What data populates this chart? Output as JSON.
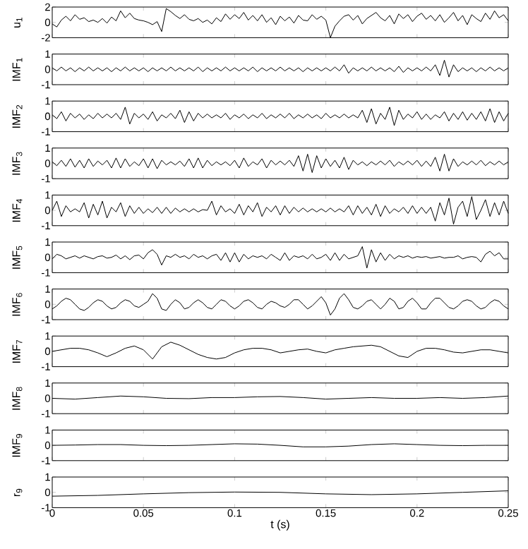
{
  "chart_data": [
    {
      "type": "line",
      "ylabel": "u$_{1}$",
      "xlim": [
        0,
        0.25
      ],
      "ylim": [
        -2,
        2
      ],
      "xticks": [
        0,
        0.05,
        0.1,
        0.15,
        0.2,
        0.25
      ],
      "yticks": [
        -2,
        0,
        2
      ],
      "tick_labels": "y",
      "x": [
        0,
        0.0025,
        0.005,
        0.0075,
        0.01,
        0.0125,
        0.015,
        0.0175,
        0.02,
        0.0225,
        0.025,
        0.0275,
        0.03,
        0.0325,
        0.035,
        0.0375,
        0.04,
        0.0425,
        0.045,
        0.0475,
        0.05,
        0.0525,
        0.055,
        0.0575,
        0.06,
        0.0625,
        0.065,
        0.0675,
        0.07,
        0.0725,
        0.075,
        0.0775,
        0.08,
        0.0825,
        0.085,
        0.0875,
        0.09,
        0.0925,
        0.095,
        0.0975,
        0.1,
        0.1025,
        0.105,
        0.1075,
        0.11,
        0.1125,
        0.115,
        0.1175,
        0.12,
        0.1225,
        0.125,
        0.1275,
        0.13,
        0.1325,
        0.135,
        0.1375,
        0.14,
        0.1425,
        0.145,
        0.1475,
        0.15,
        0.1525,
        0.155,
        0.1575,
        0.16,
        0.1625,
        0.165,
        0.1675,
        0.17,
        0.1725,
        0.175,
        0.1775,
        0.18,
        0.1825,
        0.185,
        0.1875,
        0.19,
        0.1925,
        0.195,
        0.1975,
        0.2,
        0.2025,
        0.205,
        0.2075,
        0.21,
        0.2125,
        0.215,
        0.2175,
        0.22,
        0.2225,
        0.225,
        0.2275,
        0.23,
        0.2325,
        0.235,
        0.2375,
        0.24,
        0.2425,
        0.245,
        0.2475,
        0.25
      ],
      "series": [
        {
          "color": "#000000",
          "values": [
            -0.2,
            -0.6,
            0.3,
            0.8,
            0.2,
            1.0,
            0.4,
            0.6,
            0.1,
            0.3,
            0.0,
            0.5,
            -0.1,
            0.7,
            0.2,
            1.5,
            0.6,
            1.2,
            0.5,
            0.3,
            0.2,
            0.0,
            -0.3,
            0.1,
            -1.2,
            1.8,
            1.4,
            0.9,
            0.5,
            1.0,
            0.4,
            0.2,
            0.5,
            0.0,
            0.3,
            -0.2,
            0.6,
            0.1,
            1.1,
            0.4,
            1.0,
            0.5,
            1.3,
            0.3,
            0.9,
            0.2,
            1.0,
            0.0,
            0.6,
            -0.3,
            0.8,
            0.2,
            0.7,
            -0.1,
            0.9,
            0.3,
            0.2,
            1.0,
            0.4,
            0.8,
            0.3,
            -2.0,
            -0.5,
            0.2,
            0.8,
            1.0,
            0.3,
            0.9,
            -0.2,
            0.5,
            0.9,
            1.3,
            0.6,
            0.2,
            0.9,
            -0.2,
            1.1,
            0.5,
            1.0,
            0.1,
            0.8,
            1.2,
            0.4,
            0.9,
            0.2,
            1.0,
            0.0,
            0.6,
            1.3,
            0.2,
            0.9,
            -0.3,
            1.0,
            0.5,
            0.1,
            1.2,
            0.4,
            1.5,
            0.6,
            1.0,
            0.2
          ]
        }
      ]
    },
    {
      "type": "line",
      "ylabel": "IMF$_{1}$",
      "xlim": [
        0,
        0.25
      ],
      "ylim": [
        -1,
        1
      ],
      "xticks": [
        0,
        0.05,
        0.1,
        0.15,
        0.2,
        0.25
      ],
      "yticks": [
        -1,
        0,
        1
      ],
      "tick_labels": "y",
      "x": [
        0,
        0.0025,
        0.005,
        0.0075,
        0.01,
        0.0125,
        0.015,
        0.0175,
        0.02,
        0.0225,
        0.025,
        0.0275,
        0.03,
        0.0325,
        0.035,
        0.0375,
        0.04,
        0.0425,
        0.045,
        0.0475,
        0.05,
        0.0525,
        0.055,
        0.0575,
        0.06,
        0.0625,
        0.065,
        0.0675,
        0.07,
        0.0725,
        0.075,
        0.0775,
        0.08,
        0.0825,
        0.085,
        0.0875,
        0.09,
        0.0925,
        0.095,
        0.0975,
        0.1,
        0.1025,
        0.105,
        0.1075,
        0.11,
        0.1125,
        0.115,
        0.1175,
        0.12,
        0.1225,
        0.125,
        0.1275,
        0.13,
        0.1325,
        0.135,
        0.1375,
        0.14,
        0.1425,
        0.145,
        0.1475,
        0.15,
        0.1525,
        0.155,
        0.1575,
        0.16,
        0.1625,
        0.165,
        0.1675,
        0.17,
        0.1725,
        0.175,
        0.1775,
        0.18,
        0.1825,
        0.185,
        0.1875,
        0.19,
        0.1925,
        0.195,
        0.1975,
        0.2,
        0.2025,
        0.205,
        0.2075,
        0.21,
        0.2125,
        0.215,
        0.2175,
        0.22,
        0.2225,
        0.225,
        0.2275,
        0.23,
        0.2325,
        0.235,
        0.2375,
        0.24,
        0.2425,
        0.245,
        0.2475,
        0.25
      ],
      "series": [
        {
          "color": "#000000",
          "values": [
            0.1,
            -0.1,
            0.15,
            -0.1,
            0.1,
            -0.15,
            0.1,
            -0.1,
            0.15,
            -0.1,
            0.1,
            -0.1,
            0.1,
            -0.15,
            0.1,
            -0.1,
            0.15,
            -0.1,
            0.1,
            -0.1,
            0.1,
            -0.15,
            0.1,
            -0.1,
            0.1,
            -0.1,
            0.15,
            -0.1,
            0.1,
            -0.1,
            0.1,
            -0.1,
            0.15,
            -0.15,
            0.1,
            -0.1,
            0.1,
            -0.1,
            0.15,
            -0.1,
            0.1,
            -0.1,
            0.1,
            -0.1,
            0.15,
            -0.15,
            0.1,
            -0.1,
            0.1,
            -0.1,
            0.15,
            -0.1,
            0.1,
            -0.1,
            0.1,
            -0.15,
            0.1,
            -0.1,
            0.1,
            -0.1,
            0.1,
            -0.1,
            0.15,
            -0.1,
            0.3,
            -0.25,
            0.1,
            -0.1,
            0.1,
            -0.1,
            0.15,
            -0.1,
            0.1,
            -0.1,
            0.1,
            -0.15,
            0.2,
            -0.2,
            0.1,
            -0.1,
            0.1,
            -0.1,
            0.15,
            -0.1,
            0.3,
            -0.4,
            0.6,
            -0.5,
            0.3,
            -0.15,
            0.1,
            -0.1,
            0.1,
            -0.15,
            0.1,
            -0.1,
            0.15,
            -0.1,
            0.1,
            -0.1,
            0.1
          ]
        }
      ]
    },
    {
      "type": "line",
      "ylabel": "IMF$_{2}$",
      "xlim": [
        0,
        0.25
      ],
      "ylim": [
        -1,
        1
      ],
      "xticks": [
        0,
        0.05,
        0.1,
        0.15,
        0.2,
        0.25
      ],
      "yticks": [
        -1,
        0,
        1
      ],
      "tick_labels": "y",
      "x": [
        0,
        0.0025,
        0.005,
        0.0075,
        0.01,
        0.0125,
        0.015,
        0.0175,
        0.02,
        0.0225,
        0.025,
        0.0275,
        0.03,
        0.0325,
        0.035,
        0.0375,
        0.04,
        0.0425,
        0.045,
        0.0475,
        0.05,
        0.0525,
        0.055,
        0.0575,
        0.06,
        0.0625,
        0.065,
        0.0675,
        0.07,
        0.0725,
        0.075,
        0.0775,
        0.08,
        0.0825,
        0.085,
        0.0875,
        0.09,
        0.0925,
        0.095,
        0.0975,
        0.1,
        0.1025,
        0.105,
        0.1075,
        0.11,
        0.1125,
        0.115,
        0.1175,
        0.12,
        0.1225,
        0.125,
        0.1275,
        0.13,
        0.1325,
        0.135,
        0.1375,
        0.14,
        0.1425,
        0.145,
        0.1475,
        0.15,
        0.1525,
        0.155,
        0.1575,
        0.16,
        0.1625,
        0.165,
        0.1675,
        0.17,
        0.1725,
        0.175,
        0.1775,
        0.18,
        0.1825,
        0.185,
        0.1875,
        0.19,
        0.1925,
        0.195,
        0.1975,
        0.2,
        0.2025,
        0.205,
        0.2075,
        0.21,
        0.2125,
        0.215,
        0.2175,
        0.22,
        0.2225,
        0.225,
        0.2275,
        0.23,
        0.2325,
        0.235,
        0.2375,
        0.24,
        0.2425,
        0.245,
        0.2475,
        0.25
      ],
      "series": [
        {
          "color": "#000000",
          "values": [
            0.1,
            -0.15,
            0.3,
            -0.3,
            0.2,
            -0.1,
            0.15,
            -0.2,
            0.1,
            -0.15,
            0.2,
            -0.1,
            0.15,
            -0.1,
            0.2,
            -0.2,
            0.6,
            -0.5,
            0.2,
            -0.1,
            0.15,
            -0.2,
            0.3,
            -0.3,
            0.1,
            -0.1,
            0.2,
            -0.15,
            0.4,
            -0.4,
            0.3,
            -0.3,
            0.2,
            -0.1,
            0.15,
            -0.1,
            0.1,
            -0.1,
            0.2,
            -0.2,
            0.1,
            -0.1,
            0.15,
            -0.15,
            0.1,
            -0.1,
            0.2,
            -0.15,
            0.1,
            -0.1,
            0.15,
            -0.1,
            0.2,
            -0.15,
            0.1,
            -0.1,
            0.15,
            -0.1,
            0.1,
            -0.15,
            0.2,
            -0.1,
            0.1,
            -0.1,
            0.15,
            -0.1,
            0.1,
            -0.1,
            0.4,
            -0.4,
            0.5,
            -0.5,
            0.2,
            -0.2,
            0.6,
            -0.6,
            0.4,
            -0.2,
            0.15,
            -0.1,
            0.3,
            -0.2,
            0.15,
            -0.2,
            0.1,
            -0.1,
            0.3,
            -0.3,
            0.2,
            -0.2,
            0.3,
            -0.25,
            0.2,
            -0.2,
            0.3,
            -0.3,
            0.5,
            -0.4,
            0.3,
            -0.3,
            0.2
          ]
        }
      ]
    },
    {
      "type": "line",
      "ylabel": "IMF$_{3}$",
      "xlim": [
        0,
        0.25
      ],
      "ylim": [
        -1,
        1
      ],
      "xticks": [
        0,
        0.05,
        0.1,
        0.15,
        0.2,
        0.25
      ],
      "yticks": [
        -1,
        0,
        1
      ],
      "tick_labels": "y",
      "x": [
        0,
        0.0025,
        0.005,
        0.0075,
        0.01,
        0.0125,
        0.015,
        0.0175,
        0.02,
        0.0225,
        0.025,
        0.0275,
        0.03,
        0.0325,
        0.035,
        0.0375,
        0.04,
        0.0425,
        0.045,
        0.0475,
        0.05,
        0.0525,
        0.055,
        0.0575,
        0.06,
        0.0625,
        0.065,
        0.0675,
        0.07,
        0.0725,
        0.075,
        0.0775,
        0.08,
        0.0825,
        0.085,
        0.0875,
        0.09,
        0.0925,
        0.095,
        0.0975,
        0.1,
        0.1025,
        0.105,
        0.1075,
        0.11,
        0.1125,
        0.115,
        0.1175,
        0.12,
        0.1225,
        0.125,
        0.1275,
        0.13,
        0.1325,
        0.135,
        0.1375,
        0.14,
        0.1425,
        0.145,
        0.1475,
        0.15,
        0.1525,
        0.155,
        0.1575,
        0.16,
        0.1625,
        0.165,
        0.1675,
        0.17,
        0.1725,
        0.175,
        0.1775,
        0.18,
        0.1825,
        0.185,
        0.1875,
        0.19,
        0.1925,
        0.195,
        0.1975,
        0.2,
        0.2025,
        0.205,
        0.2075,
        0.21,
        0.2125,
        0.215,
        0.2175,
        0.22,
        0.2225,
        0.225,
        0.2275,
        0.23,
        0.2325,
        0.235,
        0.2375,
        0.24,
        0.2425,
        0.245,
        0.2475,
        0.25
      ],
      "series": [
        {
          "color": "#000000",
          "values": [
            0.1,
            -0.15,
            0.2,
            -0.2,
            0.3,
            -0.25,
            0.2,
            -0.3,
            0.3,
            -0.2,
            0.15,
            -0.1,
            0.2,
            -0.3,
            0.35,
            -0.3,
            0.3,
            -0.2,
            0.1,
            -0.15,
            0.3,
            -0.3,
            0.3,
            -0.35,
            0.2,
            -0.1,
            0.1,
            -0.1,
            0.15,
            -0.2,
            0.3,
            -0.3,
            0.35,
            -0.3,
            0.2,
            -0.15,
            0.1,
            -0.1,
            0.1,
            -0.15,
            0.2,
            -0.3,
            0.35,
            -0.2,
            0.1,
            -0.1,
            0.3,
            -0.3,
            0.2,
            -0.1,
            0.15,
            -0.1,
            0.2,
            -0.2,
            0.5,
            -0.5,
            0.6,
            -0.6,
            0.5,
            -0.3,
            0.3,
            -0.2,
            0.2,
            -0.3,
            0.4,
            -0.4,
            0.2,
            -0.1,
            0.1,
            -0.15,
            0.1,
            -0.1,
            0.15,
            -0.1,
            0.2,
            -0.2,
            0.1,
            -0.1,
            0.15,
            -0.1,
            0.2,
            -0.2,
            0.15,
            -0.2,
            0.4,
            -0.5,
            0.6,
            -0.5,
            0.3,
            -0.2,
            0.1,
            -0.1,
            0.15,
            -0.1,
            0.2,
            -0.15,
            0.1,
            -0.1,
            0.15,
            -0.1,
            0.1
          ]
        }
      ]
    },
    {
      "type": "line",
      "ylabel": "IMF$_{4}$",
      "xlim": [
        0,
        0.25
      ],
      "ylim": [
        -1,
        1
      ],
      "xticks": [
        0,
        0.05,
        0.1,
        0.15,
        0.2,
        0.25
      ],
      "yticks": [
        -1,
        0,
        1
      ],
      "tick_labels": "y",
      "x": [
        0,
        0.0025,
        0.005,
        0.0075,
        0.01,
        0.0125,
        0.015,
        0.0175,
        0.02,
        0.0225,
        0.025,
        0.0275,
        0.03,
        0.0325,
        0.035,
        0.0375,
        0.04,
        0.0425,
        0.045,
        0.0475,
        0.05,
        0.0525,
        0.055,
        0.0575,
        0.06,
        0.0625,
        0.065,
        0.0675,
        0.07,
        0.0725,
        0.075,
        0.0775,
        0.08,
        0.0825,
        0.085,
        0.0875,
        0.09,
        0.0925,
        0.095,
        0.0975,
        0.1,
        0.1025,
        0.105,
        0.1075,
        0.11,
        0.1125,
        0.115,
        0.1175,
        0.12,
        0.1225,
        0.125,
        0.1275,
        0.13,
        0.1325,
        0.135,
        0.1375,
        0.14,
        0.1425,
        0.145,
        0.1475,
        0.15,
        0.1525,
        0.155,
        0.1575,
        0.16,
        0.1625,
        0.165,
        0.1675,
        0.17,
        0.1725,
        0.175,
        0.1775,
        0.18,
        0.1825,
        0.185,
        0.1875,
        0.19,
        0.1925,
        0.195,
        0.1975,
        0.2,
        0.2025,
        0.205,
        0.2075,
        0.21,
        0.2125,
        0.215,
        0.2175,
        0.22,
        0.2225,
        0.225,
        0.2275,
        0.23,
        0.2325,
        0.235,
        0.2375,
        0.24,
        0.2425,
        0.245,
        0.2475,
        0.25
      ],
      "series": [
        {
          "color": "#000000",
          "values": [
            0.0,
            0.6,
            -0.4,
            0.3,
            -0.1,
            0.1,
            -0.1,
            0.5,
            -0.5,
            0.4,
            -0.3,
            0.6,
            -0.5,
            0.2,
            -0.1,
            0.5,
            -0.4,
            0.3,
            -0.2,
            0.2,
            -0.2,
            0.1,
            -0.15,
            0.2,
            -0.2,
            0.2,
            -0.2,
            0.15,
            -0.1,
            0.1,
            -0.1,
            0.1,
            -0.1,
            0.05,
            0.0,
            0.6,
            -0.3,
            0.3,
            -0.1,
            0.1,
            -0.2,
            0.4,
            -0.3,
            0.3,
            -0.1,
            0.5,
            -0.4,
            0.2,
            -0.1,
            0.3,
            -0.3,
            0.3,
            -0.2,
            0.2,
            -0.1,
            0.15,
            -0.1,
            0.1,
            -0.1,
            0.1,
            -0.1,
            0.15,
            -0.1,
            0.1,
            -0.1,
            0.3,
            -0.3,
            0.3,
            -0.2,
            0.2,
            -0.3,
            0.4,
            -0.4,
            0.3,
            -0.2,
            0.1,
            -0.1,
            0.2,
            -0.2,
            0.3,
            -0.2,
            0.2,
            -0.2,
            0.2,
            -0.7,
            0.5,
            -0.3,
            0.8,
            -0.9,
            0.2,
            0.6,
            -0.4,
            0.9,
            -0.6,
            0.0,
            0.7,
            -0.4,
            0.5,
            -0.3,
            0.6,
            -0.2
          ]
        }
      ]
    },
    {
      "type": "line",
      "ylabel": "IMF$_{5}$",
      "xlim": [
        0,
        0.25
      ],
      "ylim": [
        -1,
        1
      ],
      "xticks": [
        0,
        0.05,
        0.1,
        0.15,
        0.2,
        0.25
      ],
      "yticks": [
        -1,
        0,
        1
      ],
      "tick_labels": "y",
      "x": [
        0,
        0.0025,
        0.005,
        0.0075,
        0.01,
        0.0125,
        0.015,
        0.0175,
        0.02,
        0.0225,
        0.025,
        0.0275,
        0.03,
        0.0325,
        0.035,
        0.0375,
        0.04,
        0.0425,
        0.045,
        0.0475,
        0.05,
        0.0525,
        0.055,
        0.0575,
        0.06,
        0.0625,
        0.065,
        0.0675,
        0.07,
        0.0725,
        0.075,
        0.0775,
        0.08,
        0.0825,
        0.085,
        0.0875,
        0.09,
        0.0925,
        0.095,
        0.0975,
        0.1,
        0.1025,
        0.105,
        0.1075,
        0.11,
        0.1125,
        0.115,
        0.1175,
        0.12,
        0.1225,
        0.125,
        0.1275,
        0.13,
        0.1325,
        0.135,
        0.1375,
        0.14,
        0.1425,
        0.145,
        0.1475,
        0.15,
        0.1525,
        0.155,
        0.1575,
        0.16,
        0.1625,
        0.165,
        0.1675,
        0.17,
        0.1725,
        0.175,
        0.1775,
        0.18,
        0.1825,
        0.185,
        0.1875,
        0.19,
        0.1925,
        0.195,
        0.1975,
        0.2,
        0.2025,
        0.205,
        0.2075,
        0.21,
        0.2125,
        0.215,
        0.2175,
        0.22,
        0.2225,
        0.225,
        0.2275,
        0.23,
        0.2325,
        0.235,
        0.2375,
        0.24,
        0.2425,
        0.245,
        0.2475,
        0.25
      ],
      "series": [
        {
          "color": "#000000",
          "values": [
            -0.1,
            0.2,
            0.1,
            -0.1,
            0.0,
            0.1,
            -0.05,
            0.1,
            0.0,
            -0.1,
            0.05,
            0.1,
            -0.05,
            0.0,
            0.15,
            -0.1,
            0.1,
            -0.15,
            0.1,
            0.15,
            -0.1,
            0.3,
            0.5,
            0.2,
            -0.5,
            0.1,
            0.0,
            0.2,
            0.0,
            0.1,
            -0.1,
            0.2,
            0.0,
            0.1,
            -0.1,
            0.1,
            0.2,
            -0.2,
            0.3,
            -0.3,
            0.3,
            -0.3,
            0.2,
            -0.1,
            0.1,
            0.0,
            0.1,
            -0.1,
            0.2,
            0.0,
            -0.2,
            0.3,
            -0.2,
            0.1,
            0.0,
            0.1,
            -0.1,
            0.2,
            -0.1,
            0.0,
            0.2,
            -0.2,
            0.3,
            -0.2,
            0.2,
            -0.1,
            0.0,
            0.1,
            0.7,
            -0.7,
            0.5,
            -0.3,
            0.3,
            -0.2,
            0.2,
            -0.1,
            0.1,
            0.0,
            0.1,
            -0.05,
            0.05,
            0.0,
            0.05,
            -0.05,
            0.0,
            0.05,
            -0.05,
            0.0,
            0.0,
            0.1,
            -0.1,
            0.0,
            0.05,
            0.0,
            -0.3,
            0.2,
            0.4,
            0.1,
            0.3,
            -0.1,
            -0.1
          ]
        }
      ]
    },
    {
      "type": "line",
      "ylabel": "IMF$_{6}$",
      "xlim": [
        0,
        0.25
      ],
      "ylim": [
        -1,
        1
      ],
      "xticks": [
        0,
        0.05,
        0.1,
        0.15,
        0.2,
        0.25
      ],
      "yticks": [
        -1,
        0,
        1
      ],
      "tick_labels": "y",
      "x": [
        0,
        0.0025,
        0.005,
        0.0075,
        0.01,
        0.0125,
        0.015,
        0.0175,
        0.02,
        0.0225,
        0.025,
        0.0275,
        0.03,
        0.0325,
        0.035,
        0.0375,
        0.04,
        0.0425,
        0.045,
        0.0475,
        0.05,
        0.0525,
        0.055,
        0.0575,
        0.06,
        0.0625,
        0.065,
        0.0675,
        0.07,
        0.0725,
        0.075,
        0.0775,
        0.08,
        0.0825,
        0.085,
        0.0875,
        0.09,
        0.0925,
        0.095,
        0.0975,
        0.1,
        0.1025,
        0.105,
        0.1075,
        0.11,
        0.1125,
        0.115,
        0.1175,
        0.12,
        0.1225,
        0.125,
        0.1275,
        0.13,
        0.1325,
        0.135,
        0.1375,
        0.14,
        0.1425,
        0.145,
        0.1475,
        0.15,
        0.1525,
        0.155,
        0.1575,
        0.16,
        0.1625,
        0.165,
        0.1675,
        0.17,
        0.1725,
        0.175,
        0.1775,
        0.18,
        0.1825,
        0.185,
        0.1875,
        0.19,
        0.1925,
        0.195,
        0.1975,
        0.2,
        0.2025,
        0.205,
        0.2075,
        0.21,
        0.2125,
        0.215,
        0.2175,
        0.22,
        0.2225,
        0.225,
        0.2275,
        0.23,
        0.2325,
        0.235,
        0.2375,
        0.24,
        0.2425,
        0.245,
        0.2475,
        0.25
      ],
      "series": [
        {
          "color": "#000000",
          "values": [
            -0.3,
            -0.1,
            0.2,
            0.4,
            0.3,
            0.0,
            -0.3,
            -0.4,
            -0.2,
            0.1,
            0.3,
            0.2,
            -0.1,
            -0.3,
            -0.2,
            0.1,
            0.3,
            0.2,
            -0.1,
            -0.2,
            0.0,
            0.2,
            0.7,
            0.4,
            -0.3,
            -0.4,
            0.0,
            0.3,
            0.1,
            -0.3,
            -0.2,
            0.1,
            0.3,
            0.1,
            -0.2,
            -0.3,
            0.0,
            0.3,
            0.2,
            -0.1,
            -0.3,
            -0.1,
            0.2,
            0.3,
            0.1,
            -0.2,
            -0.3,
            0.0,
            0.2,
            0.1,
            -0.1,
            -0.2,
            0.0,
            0.3,
            0.3,
            0.0,
            -0.3,
            -0.1,
            0.2,
            0.5,
            0.1,
            -0.7,
            -0.3,
            0.4,
            0.7,
            0.3,
            -0.2,
            -0.3,
            -0.1,
            0.2,
            0.3,
            0.0,
            -0.3,
            0.0,
            0.4,
            0.2,
            -0.3,
            -0.2,
            0.2,
            0.4,
            0.1,
            -0.3,
            -0.3,
            0.1,
            0.4,
            0.4,
            0.1,
            -0.2,
            -0.3,
            -0.1,
            0.2,
            0.3,
            0.2,
            -0.1,
            -0.3,
            -0.2,
            0.1,
            0.3,
            0.2,
            -0.1,
            -0.3
          ]
        }
      ]
    },
    {
      "type": "line",
      "ylabel": "IMF$_{7}$",
      "xlim": [
        0,
        0.25
      ],
      "ylim": [
        -1,
        1
      ],
      "xticks": [
        0,
        0.05,
        0.1,
        0.15,
        0.2,
        0.25
      ],
      "yticks": [
        -1,
        0,
        1
      ],
      "tick_labels": "y",
      "x": [
        0,
        0.005,
        0.01,
        0.015,
        0.02,
        0.025,
        0.03,
        0.035,
        0.04,
        0.045,
        0.05,
        0.055,
        0.06,
        0.065,
        0.07,
        0.075,
        0.08,
        0.085,
        0.09,
        0.095,
        0.1,
        0.105,
        0.11,
        0.115,
        0.12,
        0.125,
        0.13,
        0.135,
        0.14,
        0.145,
        0.15,
        0.155,
        0.16,
        0.165,
        0.17,
        0.175,
        0.18,
        0.185,
        0.19,
        0.195,
        0.2,
        0.205,
        0.21,
        0.215,
        0.22,
        0.225,
        0.23,
        0.235,
        0.24,
        0.245,
        0.25
      ],
      "series": [
        {
          "color": "#000000",
          "values": [
            0.0,
            0.1,
            0.2,
            0.2,
            0.1,
            -0.1,
            -0.35,
            -0.1,
            0.2,
            0.35,
            0.1,
            -0.5,
            0.3,
            0.6,
            0.4,
            0.1,
            -0.2,
            -0.4,
            -0.5,
            -0.4,
            -0.1,
            0.1,
            0.2,
            0.2,
            0.1,
            -0.1,
            0.0,
            0.1,
            0.15,
            0.0,
            -0.1,
            0.1,
            0.2,
            0.3,
            0.35,
            0.4,
            0.3,
            0.0,
            -0.3,
            -0.4,
            0.0,
            0.2,
            0.2,
            0.1,
            -0.05,
            -0.1,
            0.0,
            0.1,
            0.1,
            0.0,
            -0.1
          ]
        }
      ]
    },
    {
      "type": "line",
      "ylabel": "IMF$_{8}$",
      "xlim": [
        0,
        0.25
      ],
      "ylim": [
        -1,
        1
      ],
      "xticks": [
        0,
        0.05,
        0.1,
        0.15,
        0.2,
        0.25
      ],
      "yticks": [
        -1,
        0,
        1
      ],
      "tick_labels": "y",
      "x": [
        0,
        0.0125,
        0.025,
        0.0375,
        0.05,
        0.0625,
        0.075,
        0.0875,
        0.1,
        0.1125,
        0.125,
        0.1375,
        0.15,
        0.1625,
        0.175,
        0.1875,
        0.2,
        0.2125,
        0.225,
        0.2375,
        0.25
      ],
      "series": [
        {
          "color": "#000000",
          "values": [
            0.0,
            -0.05,
            0.05,
            0.15,
            0.1,
            0.0,
            -0.02,
            0.05,
            0.05,
            0.1,
            0.12,
            0.05,
            -0.05,
            0.0,
            0.05,
            0.0,
            0.0,
            0.05,
            0.0,
            0.05,
            0.15
          ]
        }
      ]
    },
    {
      "type": "line",
      "ylabel": "IMF$_{9}$",
      "xlim": [
        0,
        0.25
      ],
      "ylim": [
        -1,
        1
      ],
      "xticks": [
        0,
        0.05,
        0.1,
        0.15,
        0.2,
        0.25
      ],
      "yticks": [
        -1,
        0,
        1
      ],
      "tick_labels": "y",
      "x": [
        0,
        0.0125,
        0.025,
        0.0375,
        0.05,
        0.0625,
        0.075,
        0.0875,
        0.1,
        0.1125,
        0.125,
        0.1375,
        0.15,
        0.1625,
        0.175,
        0.1875,
        0.2,
        0.2125,
        0.225,
        0.2375,
        0.25
      ],
      "series": [
        {
          "color": "#000000",
          "values": [
            0.0,
            0.02,
            0.05,
            0.05,
            0.0,
            -0.02,
            0.0,
            0.05,
            0.1,
            0.08,
            0.0,
            -0.1,
            -0.1,
            -0.05,
            0.05,
            0.1,
            0.05,
            0.0,
            -0.02,
            0.0,
            0.0
          ]
        }
      ]
    },
    {
      "type": "line",
      "ylabel": "r$_{9}$",
      "xlabel": "t (s)",
      "xlim": [
        0,
        0.25
      ],
      "ylim": [
        -1,
        1
      ],
      "xticks": [
        0,
        0.05,
        0.1,
        0.15,
        0.2,
        0.25
      ],
      "yticks": [
        -1,
        0,
        1
      ],
      "x": [
        0,
        0.025,
        0.05,
        0.075,
        0.1,
        0.125,
        0.15,
        0.175,
        0.2,
        0.225,
        0.25
      ],
      "series": [
        {
          "color": "#000000",
          "values": [
            -0.25,
            -0.2,
            -0.1,
            -0.02,
            0.02,
            0.0,
            -0.1,
            -0.15,
            -0.1,
            0.0,
            0.1
          ]
        }
      ]
    }
  ]
}
